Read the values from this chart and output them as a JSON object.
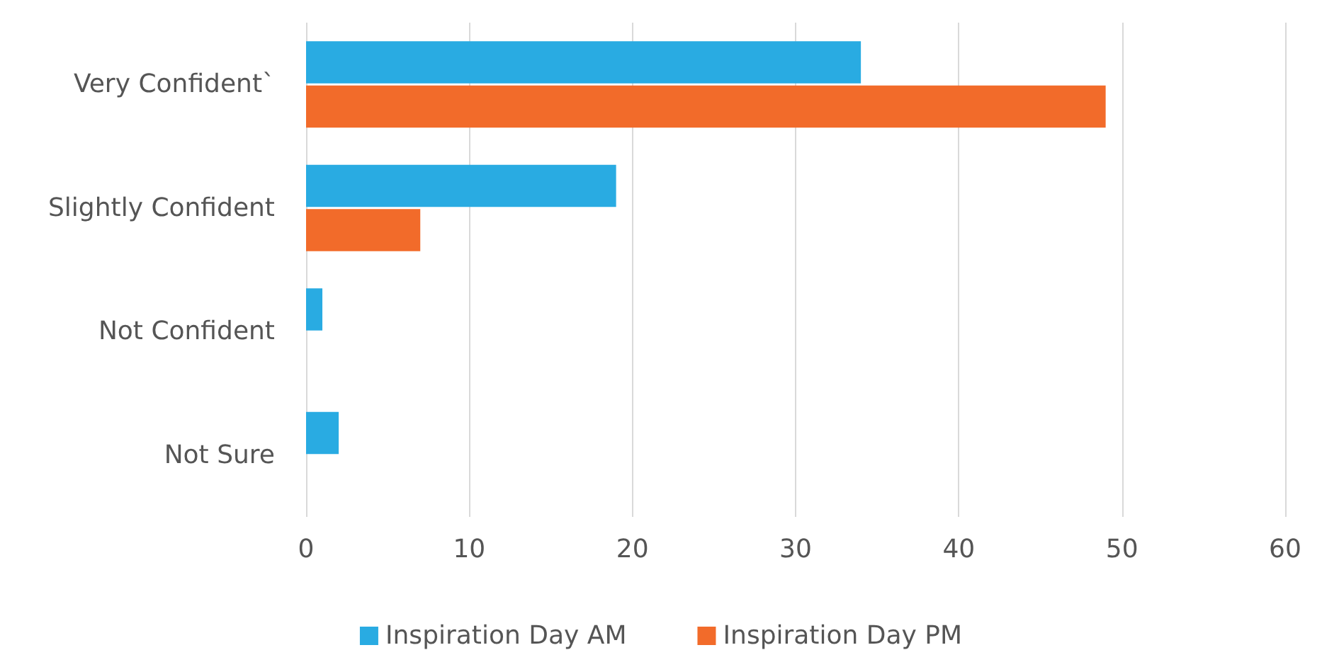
{
  "chart_data": {
    "type": "bar",
    "orientation": "horizontal",
    "categories": [
      "Very Confident`",
      "Slightly Confident",
      "Not Confident",
      "Not Sure"
    ],
    "series": [
      {
        "name": "Inspiration Day AM",
        "color": "#29abe2",
        "values": [
          34,
          19,
          1,
          2
        ]
      },
      {
        "name": "Inspiration Day PM",
        "color": "#f26b2a",
        "values": [
          49,
          7,
          0,
          0
        ]
      }
    ],
    "xlim": [
      0,
      60
    ],
    "xticks": [
      0,
      10,
      20,
      30,
      40,
      50,
      60
    ],
    "grid": "x",
    "legend": "bottom"
  }
}
